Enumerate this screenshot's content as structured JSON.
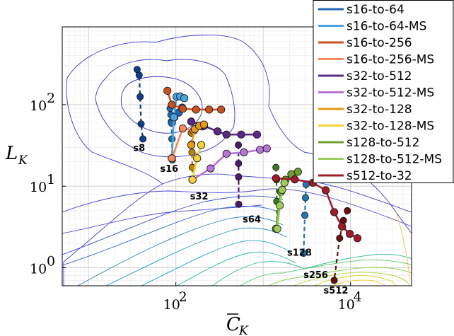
{
  "chart_data": {
    "type": "line",
    "xscale": "log",
    "yscale": "log",
    "xlim": [
      5,
      50000
    ],
    "ylim": [
      0.6,
      900
    ],
    "xlabel": "C",
    "xlabel_sub": "K",
    "ylabel": "L",
    "ylabel_sub": "K",
    "grid": true,
    "legend_position": "top-right",
    "xticks": [
      {
        "value": 100,
        "base": "10",
        "exp": "2"
      },
      {
        "value": 10000,
        "base": "10",
        "exp": "4"
      }
    ],
    "yticks": [
      {
        "value": 1,
        "base": "10",
        "exp": "0"
      },
      {
        "value": 10,
        "base": "10",
        "exp": "1"
      },
      {
        "value": 100,
        "base": "10",
        "exp": "2"
      }
    ],
    "group_labels": [
      {
        "text": "s8",
        "x": 38,
        "y": 27
      },
      {
        "text": "s16",
        "x": 84,
        "y": 15
      },
      {
        "text": "s32",
        "x": 185,
        "y": 6.9
      },
      {
        "text": "s64",
        "x": 740,
        "y": 3.6
      },
      {
        "text": "s128",
        "x": 2600,
        "y": 1.4
      },
      {
        "text": "s256",
        "x": 4000,
        "y": 0.75
      },
      {
        "text": "s512",
        "x": 6800,
        "y": 0.48
      }
    ],
    "dashed_series": [
      {
        "name": "s8",
        "color": "#0d3f8c",
        "x": [
          36,
          38,
          39,
          40,
          42
        ],
        "y": [
          270,
          230,
          125,
          58,
          38
        ]
      },
      {
        "name": "s16",
        "color": "#1f6fb3",
        "x": [
          86,
          88,
          89,
          90,
          91
        ],
        "y": [
          90,
          75,
          62,
          38,
          21
        ]
      },
      {
        "name": "s32",
        "color": "#b8860b",
        "x": [
          150,
          152,
          153,
          154,
          155
        ],
        "y": [
          45,
          33,
          26,
          17,
          12
        ]
      },
      {
        "name": "s64",
        "color": "#4a1a6b",
        "x": [
          520,
          522,
          523,
          524
        ],
        "y": [
          32,
          19,
          13,
          6
        ]
      },
      {
        "name": "s128",
        "color": "#3d7a1f",
        "x": [
          1400,
          1420,
          1430,
          1440
        ],
        "y": [
          17,
          12,
          6.5,
          3
        ]
      },
      {
        "name": "s256",
        "color": "#1f77b4",
        "x": [
          3100,
          3050,
          3000,
          2900
        ],
        "y": [
          10.5,
          7.2,
          4.4,
          1.5
        ]
      },
      {
        "name": "s512",
        "color": "#6b1010",
        "x": [
          9200,
          8300,
          7500,
          6500
        ],
        "y": [
          5,
          3.8,
          2.3,
          0.7
        ]
      }
    ],
    "series": [
      {
        "name": "s16-to-64",
        "color": "#1f66b5",
        "x": [
          90,
          96,
          108,
          118
        ],
        "y": [
          60,
          70,
          80,
          92
        ]
      },
      {
        "name": "s16-to-64-MS",
        "color": "#4aa3df",
        "x": [
          90,
          95,
          102,
          112,
          125
        ],
        "y": [
          22,
          70,
          125,
          126,
          120
        ]
      },
      {
        "name": "s16-to-256",
        "color": "#c9531f",
        "x": [
          80,
          90,
          120,
          170,
          240,
          330
        ],
        "y": [
          148,
          100,
          89,
          87,
          87,
          87
        ]
      },
      {
        "name": "s16-to-256-MS",
        "color": "#f08a5c",
        "x": [
          90,
          120,
          160,
          200
        ],
        "y": [
          22,
          51,
          48,
          54
        ]
      },
      {
        "name": "s32-to-512",
        "color": "#5b2a86",
        "x": [
          150,
          210,
          300,
          380,
          560,
          850
        ],
        "y": [
          62,
          55,
          47,
          43,
          43,
          43
        ]
      },
      {
        "name": "s32-to-512-MS",
        "color": "#b574d6",
        "x": [
          155,
          250,
          380,
          600,
          920,
          1100
        ],
        "y": [
          12,
          16.5,
          25,
          26,
          28,
          29
        ]
      },
      {
        "name": "s32-to-128",
        "color": "#e39a17",
        "x": [
          150,
          165,
          185,
          210
        ],
        "y": [
          32,
          50,
          55,
          57
        ]
      },
      {
        "name": "s32-to-128-MS",
        "color": "#f3d23c",
        "x": [
          155,
          175,
          195
        ],
        "y": [
          12,
          22,
          32
        ]
      },
      {
        "name": "s128-to-512",
        "color": "#6b9e2a",
        "x": [
          1400,
          1600,
          1800,
          2100,
          2500
        ],
        "y": [
          3,
          8.5,
          12,
          14,
          15
        ]
      },
      {
        "name": "s128-to-512-MS",
        "color": "#9ccc5a",
        "x": [
          1450,
          1550,
          1650,
          1750
        ],
        "y": [
          3,
          5.8,
          9,
          11
        ]
      },
      {
        "name": "s512-to-32",
        "color": "#a01c2a",
        "x": [
          1400,
          2300,
          3700,
          5200,
          6500,
          8000,
          9800,
          12000
        ],
        "y": [
          12.5,
          12.1,
          11,
          8.9,
          4.8,
          3.2,
          2.6,
          2.3
        ]
      }
    ]
  }
}
